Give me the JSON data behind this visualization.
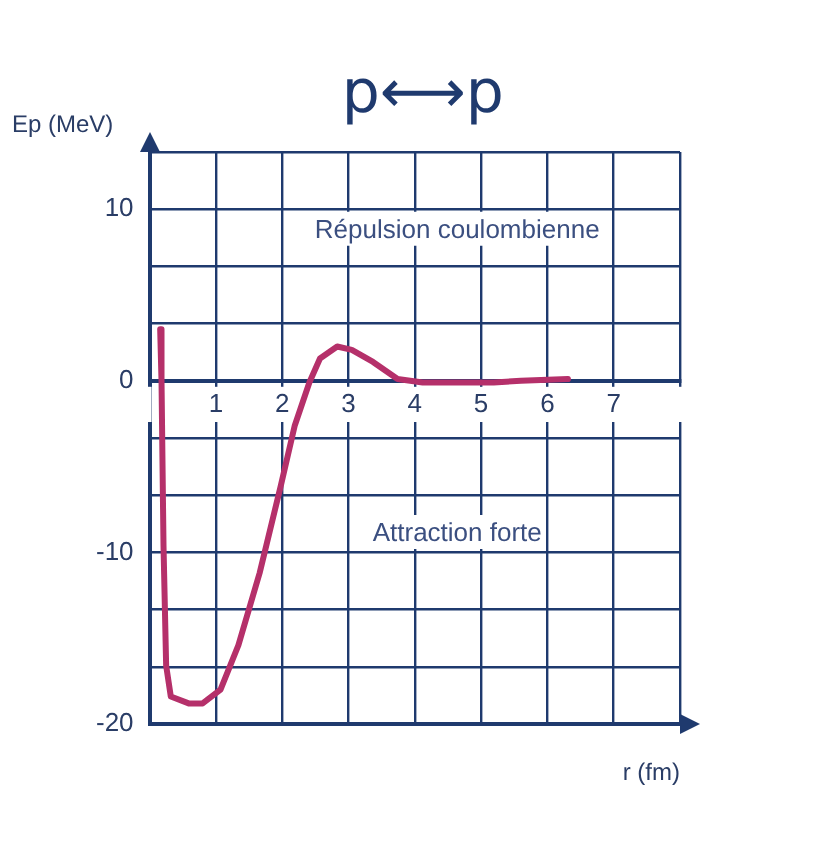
{
  "chart_data": {
    "type": "line",
    "title": "p⟷p",
    "xlabel": "r (fm)",
    "ylabel": "Ep (MeV)",
    "annotations": [
      "Répulsion coulombienne",
      "Attraction forte"
    ],
    "xlim": [
      0,
      8
    ],
    "xticks": [
      {
        "value": 0,
        "label": null
      },
      1,
      2,
      3,
      4,
      5,
      6,
      7,
      {
        "value": 8,
        "label": null
      }
    ],
    "ylim": [
      -20,
      13.333
    ],
    "yticks": [
      -20,
      {
        "value": -16.667,
        "label": null
      },
      {
        "value": -13.333,
        "label": null
      },
      -10,
      {
        "value": -6.667,
        "label": null
      },
      {
        "value": -3.333,
        "label": null
      },
      0,
      {
        "value": 3.333,
        "label": null
      },
      {
        "value": 6.667,
        "label": null
      },
      10,
      {
        "value": 13.333,
        "label": null
      }
    ],
    "grid": true,
    "marker": "none",
    "line_style": "solid",
    "series": [
      {
        "color": "#b5306a",
        "x": [
          0.16,
          0.18,
          0.21,
          0.25,
          0.32,
          0.59,
          0.8,
          1.07,
          1.34,
          1.66,
          1.98,
          2.19,
          2.41,
          2.57,
          2.83,
          3.05,
          3.37,
          3.74,
          4.12,
          5.19,
          5.6,
          6.31
        ],
        "values": [
          3,
          0,
          -9.6,
          -16.6,
          -18.4,
          -18.8,
          -18.8,
          -18,
          -15.4,
          -11.2,
          -6.1,
          -2.6,
          -0.1,
          1.3,
          2,
          1.8,
          1.1,
          0.1,
          -0.1,
          -0.1,
          0,
          0.1
        ]
      }
    ]
  }
}
